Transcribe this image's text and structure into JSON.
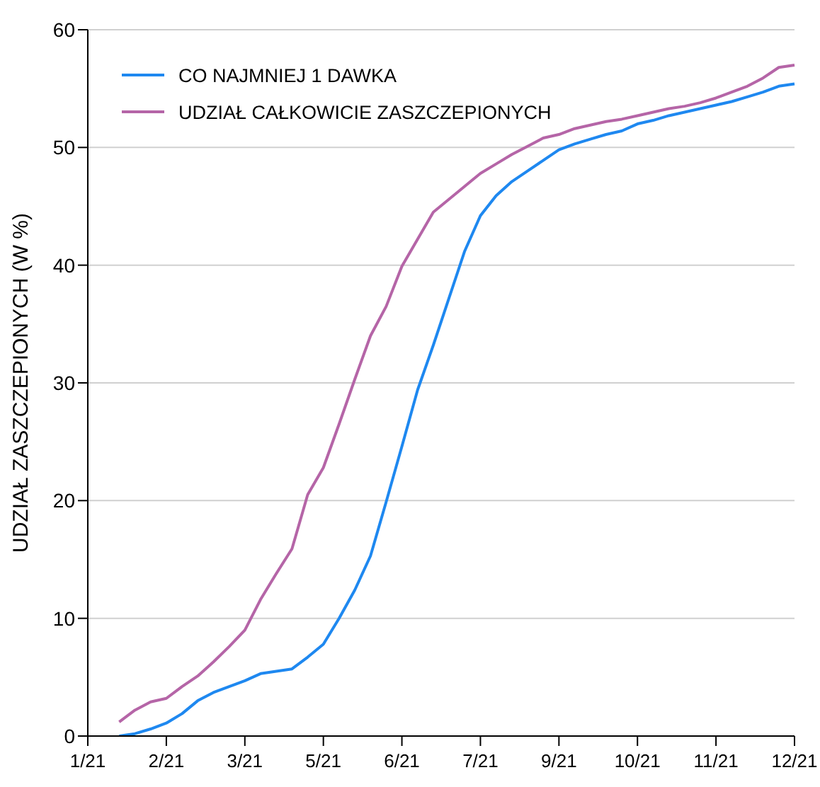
{
  "chart_data": {
    "type": "line",
    "ylabel": "UDZIAŁ ZASZCZEPIONYCH (W %)",
    "categories": [
      "1/21",
      null,
      null,
      null,
      null,
      "2/21",
      null,
      null,
      null,
      null,
      "3/21",
      null,
      null,
      null,
      null,
      "5/21",
      null,
      null,
      null,
      null,
      "6/21",
      null,
      null,
      null,
      null,
      "7/21",
      null,
      null,
      null,
      null,
      "9/21",
      null,
      null,
      null,
      null,
      "10/21",
      null,
      null,
      null,
      null,
      "11/21",
      null,
      null,
      null,
      null,
      "12/21"
    ],
    "ylim": [
      0,
      60
    ],
    "yticks": [
      0,
      10,
      20,
      30,
      40,
      50,
      60
    ],
    "grid": "y",
    "legend": "top left",
    "marker": "none",
    "line_style": "solid",
    "series": [
      {
        "name": "CO NAJMNIEJ 1 DAWKA",
        "color": "#1e88f0",
        "values": [
          null,
          null,
          0,
          0.2,
          0.6,
          1.1,
          1.9,
          3.0,
          3.7,
          4.2,
          4.7,
          5.3,
          5.5,
          5.7,
          6.7,
          7.8,
          10,
          12.4,
          15.3,
          19.9,
          24.6,
          29.4,
          33.2,
          37.2,
          41.2,
          44.2,
          45.9,
          47.1,
          48,
          48.9,
          49.8,
          50.3,
          50.7,
          51.1,
          51.4,
          52,
          52.3,
          52.7,
          53,
          53.3,
          53.6,
          53.9,
          54.3,
          54.7,
          55.2,
          55.4
        ]
      },
      {
        "name": "UDZIAŁ CAŁKOWICIE ZASZCZEPIONYCH",
        "color": "#b565a7",
        "values": [
          null,
          null,
          1.2,
          2.2,
          2.9,
          3.2,
          4.2,
          5.1,
          6.3,
          7.6,
          9,
          11.6,
          13.8,
          15.9,
          20.5,
          22.8,
          26.5,
          30.3,
          34,
          36.5,
          39.9,
          42.2,
          44.5,
          45.6,
          46.7,
          47.8,
          48.6,
          49.4,
          50.1,
          50.8,
          51.1,
          51.6,
          51.9,
          52.2,
          52.4,
          52.7,
          53,
          53.3,
          53.5,
          53.8,
          54.2,
          54.7,
          55.2,
          55.9,
          56.8,
          57
        ]
      }
    ]
  }
}
